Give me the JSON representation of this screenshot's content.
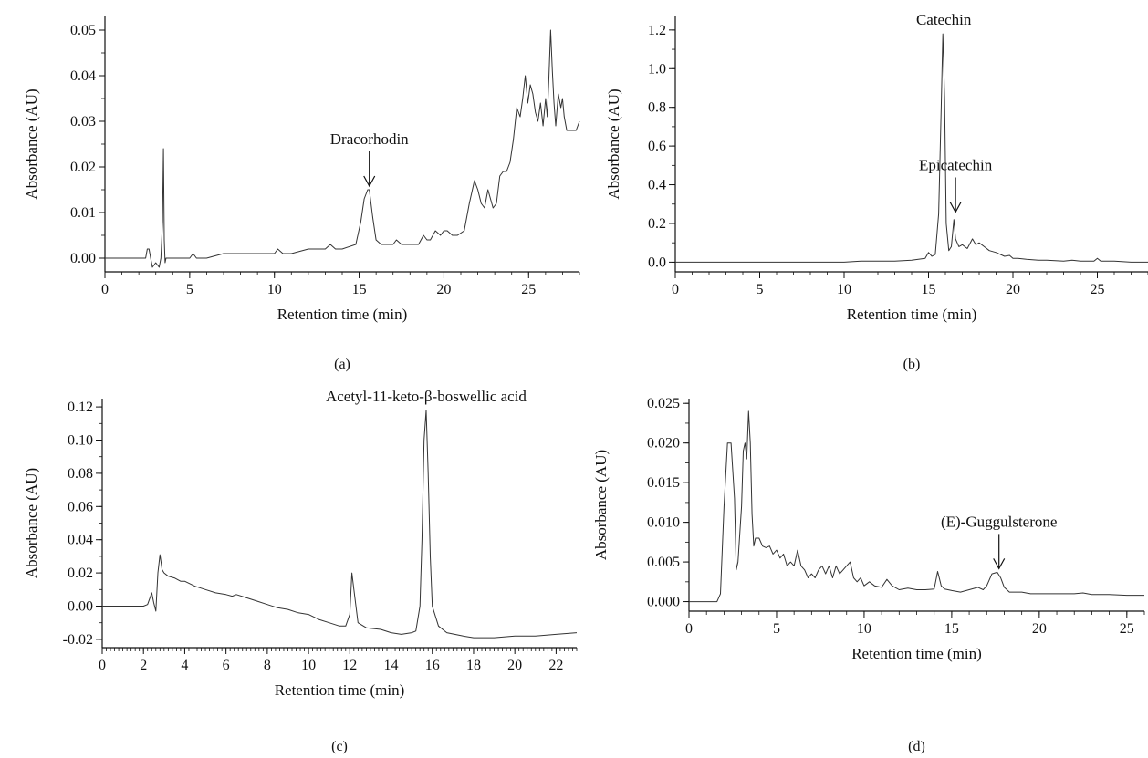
{
  "chart_data": [
    {
      "type": "line",
      "panel_label": "(a)",
      "xlabel": "Retention time (min)",
      "ylabel": "Absorbance (AU)",
      "xlim": [
        0,
        28
      ],
      "ylim": [
        -0.003,
        0.053
      ],
      "xticks": [
        0,
        5,
        10,
        15,
        20,
        25
      ],
      "yticks": [
        0.0,
        0.01,
        0.02,
        0.03,
        0.04,
        0.05
      ],
      "ytick_labels": [
        "0.00",
        "0.01",
        "0.02",
        "0.03",
        "0.04",
        "0.05"
      ],
      "annotations": [
        {
          "text": "Dracorhodin",
          "x": 15.6,
          "y": 0.015,
          "arrow": true
        }
      ],
      "series": [
        {
          "x": [
            0,
            2.4,
            2.5,
            2.6,
            2.7,
            2.8,
            3.0,
            3.2,
            3.3,
            3.4,
            3.45,
            3.5,
            3.55,
            3.6,
            3.7,
            4.0,
            4.5,
            5.0,
            5.2,
            5.4,
            6,
            7,
            8,
            9,
            10,
            10.2,
            10.5,
            11,
            12,
            13,
            13.3,
            13.6,
            14,
            14.8,
            15.1,
            15.3,
            15.5,
            15.6,
            15.8,
            16.0,
            16.3,
            16.6,
            17.0,
            17.2,
            17.5,
            18,
            18.5,
            18.8,
            19.0,
            19.2,
            19.5,
            19.8,
            20.0,
            20.2,
            20.5,
            20.8,
            21.2,
            21.5,
            21.8,
            22.0,
            22.2,
            22.4,
            22.6,
            22.9,
            23.1,
            23.3,
            23.5,
            23.7,
            23.9,
            24.1,
            24.3,
            24.5,
            24.65,
            24.8,
            24.95,
            25.1,
            25.25,
            25.4,
            25.55,
            25.7,
            25.85,
            26.0,
            26.1,
            26.2,
            26.3,
            26.4,
            26.5,
            26.6,
            26.75,
            26.9,
            27.0,
            27.1,
            27.25,
            27.4,
            27.6,
            27.8,
            28.0
          ],
          "y": [
            0.0,
            0.0,
            0.002,
            0.002,
            0.0,
            -0.002,
            -0.001,
            -0.002,
            0.0,
            0.008,
            0.024,
            0.004,
            -0.001,
            0.0,
            0.0,
            0.0,
            0.0,
            0.0,
            0.001,
            0.0,
            0.0,
            0.001,
            0.001,
            0.001,
            0.001,
            0.002,
            0.001,
            0.001,
            0.002,
            0.002,
            0.003,
            0.002,
            0.002,
            0.003,
            0.008,
            0.013,
            0.015,
            0.015,
            0.009,
            0.004,
            0.003,
            0.003,
            0.003,
            0.004,
            0.003,
            0.003,
            0.003,
            0.005,
            0.004,
            0.004,
            0.006,
            0.005,
            0.006,
            0.006,
            0.005,
            0.005,
            0.006,
            0.012,
            0.017,
            0.015,
            0.012,
            0.011,
            0.015,
            0.011,
            0.012,
            0.018,
            0.019,
            0.019,
            0.021,
            0.026,
            0.033,
            0.031,
            0.035,
            0.04,
            0.034,
            0.038,
            0.036,
            0.032,
            0.03,
            0.034,
            0.029,
            0.035,
            0.031,
            0.04,
            0.05,
            0.041,
            0.034,
            0.029,
            0.036,
            0.033,
            0.035,
            0.031,
            0.028,
            0.028,
            0.028,
            0.028,
            0.03
          ]
        }
      ]
    },
    {
      "type": "line",
      "panel_label": "(b)",
      "xlabel": "Retention time (min)",
      "ylabel": "Absorbance (AU)",
      "xlim": [
        0,
        28
      ],
      "ylim": [
        -0.05,
        1.27
      ],
      "xticks": [
        0,
        5,
        10,
        15,
        20,
        25
      ],
      "yticks": [
        0.0,
        0.2,
        0.4,
        0.6,
        0.8,
        1.0,
        1.2
      ],
      "ytick_labels": [
        "0.0",
        "0.2",
        "0.4",
        "0.6",
        "0.8",
        "1.0",
        "1.2"
      ],
      "annotations": [
        {
          "text": "Catechin",
          "x": 15.9,
          "y": 1.2,
          "arrow": false
        },
        {
          "text": "Epicatechin",
          "x": 16.6,
          "y": 0.24,
          "arrow": true
        }
      ],
      "series": [
        {
          "x": [
            0,
            5,
            10,
            11,
            13,
            14,
            14.8,
            15.0,
            15.2,
            15.4,
            15.6,
            15.75,
            15.85,
            15.95,
            16.05,
            16.2,
            16.35,
            16.5,
            16.6,
            16.8,
            17.0,
            17.3,
            17.6,
            17.8,
            18.0,
            18.3,
            18.6,
            19.0,
            19.5,
            19.8,
            20.0,
            20.3,
            20.8,
            21.5,
            22,
            23,
            23.5,
            24,
            24.8,
            25.0,
            25.2,
            26,
            27,
            28
          ],
          "y": [
            0.0,
            0.0,
            0.0,
            0.005,
            0.005,
            0.01,
            0.02,
            0.05,
            0.03,
            0.04,
            0.25,
            0.8,
            1.18,
            0.85,
            0.2,
            0.06,
            0.08,
            0.22,
            0.12,
            0.08,
            0.09,
            0.07,
            0.12,
            0.09,
            0.1,
            0.08,
            0.06,
            0.05,
            0.03,
            0.035,
            0.02,
            0.02,
            0.015,
            0.01,
            0.01,
            0.005,
            0.01,
            0.005,
            0.005,
            0.02,
            0.005,
            0.005,
            0.0,
            0.0
          ]
        }
      ]
    },
    {
      "type": "line",
      "panel_label": "(c)",
      "xlabel": "Retention time (min)",
      "ylabel": "Absorbance (AU)",
      "xlim": [
        0,
        23
      ],
      "ylim": [
        -0.025,
        0.125
      ],
      "xticks": [
        0,
        2,
        4,
        6,
        8,
        10,
        12,
        14,
        16,
        18,
        20,
        22
      ],
      "yticks": [
        -0.02,
        0.0,
        0.02,
        0.04,
        0.06,
        0.08,
        0.1,
        0.12
      ],
      "ytick_labels": [
        "-0.02",
        "0.00",
        "0.02",
        "0.04",
        "0.06",
        "0.08",
        "0.10",
        "0.12"
      ],
      "annotations": [
        {
          "text": "Acetyl-11-keto-β-boswellic acid",
          "x": 15.7,
          "y": 0.12,
          "arrow": false
        }
      ],
      "series": [
        {
          "x": [
            0,
            2.0,
            2.2,
            2.4,
            2.5,
            2.6,
            2.7,
            2.8,
            2.9,
            3.0,
            3.2,
            3.5,
            3.8,
            4.0,
            4.5,
            5.0,
            5.5,
            6.0,
            6.3,
            6.5,
            7.0,
            7.5,
            8.0,
            8.5,
            9.0,
            9.5,
            10.0,
            10.5,
            11.0,
            11.5,
            11.8,
            12.0,
            12.1,
            12.2,
            12.4,
            12.8,
            13.5,
            14.0,
            14.5,
            15.0,
            15.2,
            15.4,
            15.5,
            15.6,
            15.7,
            15.8,
            15.9,
            16.0,
            16.3,
            16.7,
            17.5,
            18,
            19,
            20,
            21,
            22,
            23
          ],
          "y": [
            0.0,
            0.0,
            0.001,
            0.008,
            0.002,
            -0.003,
            0.02,
            0.031,
            0.022,
            0.02,
            0.018,
            0.017,
            0.015,
            0.015,
            0.012,
            0.01,
            0.008,
            0.007,
            0.006,
            0.007,
            0.005,
            0.003,
            0.001,
            -0.001,
            -0.002,
            -0.004,
            -0.005,
            -0.008,
            -0.01,
            -0.012,
            -0.012,
            -0.005,
            0.02,
            0.01,
            -0.01,
            -0.013,
            -0.014,
            -0.016,
            -0.017,
            -0.016,
            -0.015,
            0.0,
            0.04,
            0.1,
            0.118,
            0.08,
            0.03,
            0.0,
            -0.012,
            -0.016,
            -0.018,
            -0.019,
            -0.019,
            -0.018,
            -0.018,
            -0.017,
            -0.016
          ]
        }
      ]
    },
    {
      "type": "line",
      "panel_label": "(d)",
      "xlabel": "Retention time (min)",
      "ylabel": "Absorbance (AU)",
      "xlim": [
        0,
        26
      ],
      "ylim": [
        -0.0012,
        0.0256
      ],
      "xticks": [
        0,
        5,
        10,
        15,
        20,
        25
      ],
      "yticks": [
        0.0,
        0.005,
        0.01,
        0.015,
        0.02,
        0.025
      ],
      "ytick_labels": [
        "0.000",
        "0.005",
        "0.010",
        "0.015",
        "0.020",
        "0.025"
      ],
      "annotations": [
        {
          "text": "(E)-Guggulsterone",
          "x": 17.7,
          "y": 0.0037,
          "arrow": true
        }
      ],
      "series": [
        {
          "x": [
            0,
            1.6,
            1.8,
            2.0,
            2.2,
            2.4,
            2.6,
            2.7,
            2.8,
            3.0,
            3.1,
            3.2,
            3.3,
            3.4,
            3.5,
            3.6,
            3.7,
            3.8,
            3.9,
            4.0,
            4.2,
            4.4,
            4.6,
            4.8,
            5.0,
            5.2,
            5.4,
            5.6,
            5.8,
            6.0,
            6.2,
            6.4,
            6.6,
            6.8,
            7.0,
            7.2,
            7.4,
            7.6,
            7.8,
            8.0,
            8.2,
            8.4,
            8.6,
            8.8,
            9.0,
            9.2,
            9.4,
            9.6,
            9.8,
            10.0,
            10.3,
            10.6,
            11.0,
            11.3,
            11.6,
            12.0,
            12.5,
            13.0,
            13.5,
            14.0,
            14.2,
            14.4,
            14.6,
            15.0,
            15.5,
            16.0,
            16.5,
            16.8,
            17.0,
            17.3,
            17.6,
            17.8,
            18.0,
            18.3,
            18.6,
            19.0,
            19.5,
            20.0,
            20.5,
            21,
            22,
            22.5,
            23,
            24,
            25,
            26
          ],
          "y": [
            0.0,
            0.0,
            0.001,
            0.012,
            0.02,
            0.02,
            0.013,
            0.004,
            0.005,
            0.012,
            0.019,
            0.02,
            0.018,
            0.024,
            0.02,
            0.011,
            0.007,
            0.008,
            0.008,
            0.008,
            0.007,
            0.0068,
            0.007,
            0.006,
            0.0065,
            0.0055,
            0.006,
            0.0045,
            0.005,
            0.0045,
            0.0065,
            0.0045,
            0.004,
            0.003,
            0.0035,
            0.003,
            0.004,
            0.0045,
            0.0035,
            0.0045,
            0.003,
            0.0045,
            0.0035,
            0.004,
            0.0045,
            0.005,
            0.003,
            0.0025,
            0.003,
            0.002,
            0.0025,
            0.002,
            0.0018,
            0.0028,
            0.002,
            0.0015,
            0.0017,
            0.0015,
            0.0015,
            0.0016,
            0.0038,
            0.002,
            0.0016,
            0.0014,
            0.0012,
            0.0015,
            0.0018,
            0.0015,
            0.002,
            0.0035,
            0.0037,
            0.003,
            0.0018,
            0.0012,
            0.0012,
            0.0012,
            0.001,
            0.001,
            0.001,
            0.001,
            0.001,
            0.0011,
            0.0009,
            0.0009,
            0.0008,
            0.0008
          ]
        }
      ]
    }
  ]
}
